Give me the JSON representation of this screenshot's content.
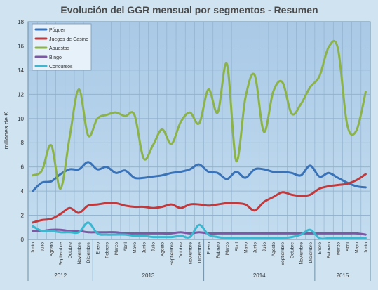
{
  "chart_data": {
    "type": "line",
    "title": "Evolución del GGR mensual por segmentos - Resumen",
    "ylabel": "millones de €",
    "xlabel": "",
    "ylim": [
      0,
      18
    ],
    "yticks": [
      "0",
      "2",
      "4",
      "6",
      "8",
      "10",
      "12",
      "14",
      "16",
      "18"
    ],
    "grid": true,
    "legend_position": "top-left",
    "months": [
      "Junio",
      "Julio",
      "Agosto",
      "Septiembre",
      "Octubre",
      "Noviembre",
      "Diciembre",
      "Enero",
      "Febrero",
      "Marzo",
      "Abril",
      "Mayo",
      "Junio",
      "Julio",
      "Agosto",
      "Septiembre",
      "Octubre",
      "Noviembre",
      "Diciembre",
      "Enero",
      "Febrero",
      "Marzo",
      "Abril",
      "Mayo",
      "Junio",
      "Julio",
      "Agosto",
      "Septiembre",
      "Octubre",
      "Noviembre",
      "Diciembre",
      "Enero",
      "Febrero",
      "Marzo",
      "Abril",
      "Mayo",
      "Junio"
    ],
    "years": [
      {
        "label": "2012",
        "start": 0,
        "end": 6
      },
      {
        "label": "2013",
        "start": 7,
        "end": 18
      },
      {
        "label": "2014",
        "start": 19,
        "end": 30
      },
      {
        "label": "2015",
        "start": 31,
        "end": 36
      }
    ],
    "series": [
      {
        "name": "Póquer",
        "color": "#3a72b8",
        "values": [
          4.0,
          4.7,
          4.8,
          5.4,
          5.8,
          5.8,
          6.4,
          5.8,
          6.0,
          5.5,
          5.7,
          5.1,
          5.1,
          5.2,
          5.3,
          5.5,
          5.6,
          5.8,
          6.2,
          5.6,
          5.5,
          5.0,
          5.6,
          5.1,
          5.8,
          5.8,
          5.6,
          5.6,
          5.5,
          5.3,
          6.1,
          5.2,
          5.5,
          5.1,
          4.7,
          4.4,
          4.3
        ]
      },
      {
        "name": "Juegos de Casino",
        "color": "#c0393c",
        "values": [
          1.4,
          1.6,
          1.7,
          2.1,
          2.6,
          2.2,
          2.8,
          2.9,
          3.0,
          3.0,
          2.8,
          2.7,
          2.7,
          2.6,
          2.7,
          2.9,
          2.6,
          2.9,
          2.9,
          2.8,
          2.9,
          3.0,
          3.0,
          2.9,
          2.4,
          3.1,
          3.5,
          3.9,
          3.7,
          3.6,
          3.7,
          4.2,
          4.4,
          4.5,
          4.6,
          4.9,
          5.4
        ]
      },
      {
        "name": "Apuestas",
        "color": "#8cb34a",
        "values": [
          5.3,
          5.7,
          7.8,
          4.2,
          8.5,
          12.4,
          8.6,
          10.0,
          10.3,
          10.5,
          10.2,
          10.3,
          6.7,
          7.8,
          9.1,
          7.9,
          9.7,
          10.5,
          9.6,
          12.4,
          10.5,
          14.5,
          6.5,
          11.7,
          13.6,
          8.9,
          12.2,
          13.0,
          10.4,
          11.2,
          12.6,
          13.5,
          15.9,
          15.8,
          9.5,
          9.0,
          12.2
        ]
      },
      {
        "name": "Bingo",
        "color": "#7b5aa3",
        "values": [
          0.7,
          0.7,
          0.8,
          0.8,
          0.7,
          0.7,
          0.6,
          0.6,
          0.6,
          0.6,
          0.5,
          0.5,
          0.5,
          0.5,
          0.5,
          0.5,
          0.6,
          0.5,
          0.6,
          0.5,
          0.5,
          0.5,
          0.5,
          0.5,
          0.5,
          0.5,
          0.5,
          0.5,
          0.5,
          0.5,
          0.5,
          0.5,
          0.5,
          0.5,
          0.5,
          0.5,
          0.4
        ]
      },
      {
        "name": "Concursos",
        "color": "#3db6cf",
        "values": [
          1.1,
          0.7,
          0.7,
          0.6,
          0.6,
          0.6,
          1.4,
          0.5,
          0.4,
          0.4,
          0.4,
          0.3,
          0.3,
          0.2,
          0.2,
          0.2,
          0.3,
          0.2,
          1.2,
          0.4,
          0.2,
          0.1,
          0.1,
          0.1,
          0.1,
          0.1,
          0.1,
          0.1,
          0.2,
          0.4,
          0.8,
          0.1,
          0.1,
          0.1,
          0.1,
          0.1,
          0.1
        ]
      }
    ]
  }
}
